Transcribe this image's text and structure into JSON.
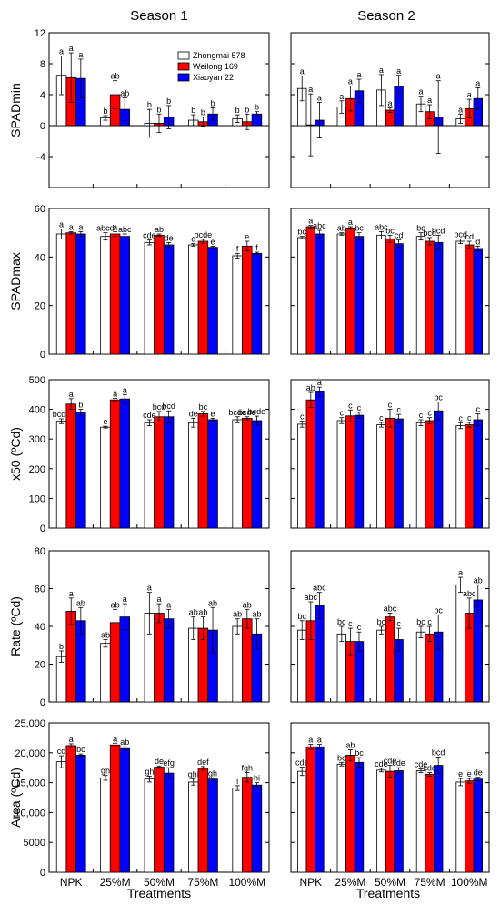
{
  "seasons": [
    "Season 1",
    "Season 2"
  ],
  "xlabel": "Treatments",
  "categories": [
    "NPK",
    "25%M",
    "50%M",
    "75%M",
    "100%M"
  ],
  "colors": {
    "Zhongmai 578": "#ffffff",
    "Weilong 169": "#ff0000",
    "Xiaoyan 22": "#0000ff"
  },
  "legend": [
    "Zhongmai 578",
    "Weilong 169",
    "Xiaoyan 22"
  ],
  "chart_data": [
    {
      "type": "bar",
      "panel": "SPADmin",
      "ylabel": "SPADmin",
      "ylim": [
        -8,
        12
      ],
      "yticks": [
        -4,
        0,
        4,
        8,
        12
      ],
      "ytick_labels": [
        "-4",
        "0",
        "4",
        "8",
        "12"
      ],
      "legend_shown": true,
      "seasons": [
        {
          "series": [
            {
              "name": "Zhongmai 578",
              "values": [
                6.5,
                1.0,
                0.3,
                0.7,
                0.9
              ],
              "errors": [
                2.5,
                0.3,
                1.8,
                0.7,
                0.5
              ],
              "labels": [
                "a",
                "b",
                "b",
                "b",
                "b"
              ]
            },
            {
              "name": "Weilong 169",
              "values": [
                6.2,
                4.0,
                0.3,
                0.5,
                0.5
              ],
              "errors": [
                3.2,
                1.8,
                1.2,
                0.6,
                1.0
              ],
              "labels": [
                "a",
                "ab",
                "b",
                "b",
                "b"
              ]
            },
            {
              "name": "Xiaoyan 22",
              "values": [
                6.1,
                2.1,
                1.1,
                1.5,
                1.5
              ],
              "errors": [
                2.5,
                1.5,
                1.5,
                0.8,
                0.3
              ],
              "labels": [
                "a",
                "ab",
                "b",
                "b",
                "b"
              ]
            }
          ]
        },
        {
          "series": [
            {
              "name": "Zhongmai 578",
              "values": [
                4.8,
                2.4,
                4.6,
                2.8,
                0.9
              ],
              "errors": [
                1.6,
                0.8,
                2.0,
                1.0,
                0.6
              ],
              "labels": [
                "a",
                "a",
                "a",
                "a",
                "a"
              ]
            },
            {
              "name": "Weilong 169",
              "values": [
                0.1,
                3.5,
                2.0,
                1.8,
                2.2
              ],
              "errors": [
                4.0,
                1.6,
                0.3,
                0.9,
                1.2
              ],
              "labels": [
                "a",
                "a",
                "a",
                "a",
                "a"
              ]
            },
            {
              "name": "Xiaoyan 22",
              "values": [
                0.7,
                4.5,
                5.1,
                1.1,
                3.5
              ],
              "errors": [
                2.3,
                1.5,
                1.4,
                4.7,
                1.4
              ],
              "labels": [
                "a",
                "a",
                "a",
                "a",
                "a"
              ]
            }
          ]
        }
      ]
    },
    {
      "type": "bar",
      "panel": "SPADmax",
      "ylabel": "SPADmax",
      "ylim": [
        0,
        60
      ],
      "yticks": [
        0,
        20,
        40,
        60
      ],
      "ytick_labels": [
        "0",
        "20",
        "40",
        "60"
      ],
      "legend_shown": false,
      "seasons": [
        {
          "series": [
            {
              "name": "Zhongmai 578",
              "values": [
                49.5,
                48.5,
                46.0,
                45.0,
                40.5
              ],
              "errors": [
                2.0,
                1.5,
                1.0,
                0.5,
                1.0
              ],
              "labels": [
                "a",
                "abcd",
                "cde",
                "e",
                "f"
              ]
            },
            {
              "name": "Weilong 169",
              "values": [
                50.0,
                49.5,
                49.0,
                46.5,
                44.5
              ],
              "errors": [
                0.5,
                1.0,
                0.5,
                0.8,
                2.0
              ],
              "labels": [
                "a",
                "a",
                "ab",
                "bcde",
                "e"
              ]
            },
            {
              "name": "Xiaoyan 22",
              "values": [
                49.5,
                48.5,
                45.0,
                44.0,
                41.5
              ],
              "errors": [
                1.0,
                1.0,
                1.0,
                0.5,
                0.5
              ],
              "labels": [
                "a",
                "abc",
                "de",
                "e",
                "f"
              ]
            }
          ]
        },
        {
          "series": [
            {
              "name": "Zhongmai 578",
              "values": [
                48.0,
                49.5,
                49.0,
                48.5,
                46.5
              ],
              "errors": [
                0.5,
                0.5,
                1.5,
                1.5,
                1.0
              ],
              "labels": [
                "bc",
                "ab",
                "abc",
                "bc",
                "bcd"
              ]
            },
            {
              "name": "Weilong 169",
              "values": [
                52.5,
                52.0,
                47.5,
                46.5,
                45.0
              ],
              "errors": [
                0.5,
                0.5,
                1.5,
                1.5,
                1.5
              ],
              "labels": [
                "a",
                "a",
                "bc",
                "bcd",
                "cd"
              ]
            },
            {
              "name": "Xiaoyan 22",
              "values": [
                49.5,
                48.5,
                45.5,
                46.0,
                43.5
              ],
              "errors": [
                1.5,
                1.5,
                1.5,
                3.0,
                1.0
              ],
              "labels": [
                "abc",
                "bc",
                "cd",
                "bcd",
                "d"
              ]
            }
          ]
        }
      ]
    },
    {
      "type": "bar",
      "panel": "x50",
      "ylabel": "x50 (ºCd)",
      "ylim": [
        0,
        500
      ],
      "yticks": [
        0,
        100,
        200,
        300,
        400,
        500
      ],
      "ytick_labels": [
        "0",
        "100",
        "200",
        "300",
        "400",
        "500"
      ],
      "legend_shown": false,
      "seasons": [
        {
          "series": [
            {
              "name": "Zhongmai 578",
              "values": [
                360,
                340,
                355,
                355,
                365
              ],
              "errors": [
                8,
                3,
                10,
                15,
                10
              ],
              "labels": [
                "bcde",
                "e",
                "cde",
                "de",
                "bcde"
              ]
            },
            {
              "name": "Weilong 169",
              "values": [
                418,
                432,
                375,
                385,
                370
              ],
              "errors": [
                18,
                5,
                18,
                8,
                5
              ],
              "labels": [
                "a",
                "a",
                "bcd",
                "bc",
                "bcde"
              ]
            },
            {
              "name": "Xiaoyan 22",
              "values": [
                390,
                435,
                375,
                365,
                362
              ],
              "errors": [
                10,
                15,
                20,
                5,
                15
              ],
              "labels": [
                "b",
                "a",
                "bcd",
                "e",
                "bcde"
              ]
            }
          ]
        },
        {
          "series": [
            {
              "name": "Zhongmai 578",
              "values": [
                350,
                362,
                348,
                355,
                345
              ],
              "errors": [
                10,
                10,
                8,
                10,
                10
              ],
              "labels": [
                "c",
                "c",
                "c",
                "c",
                "c"
              ]
            },
            {
              "name": "Weilong 169",
              "values": [
                432,
                378,
                370,
                362,
                348
              ],
              "errors": [
                25,
                20,
                30,
                10,
                8
              ],
              "labels": [
                "ab",
                "c",
                "c",
                "c",
                "c"
              ]
            },
            {
              "name": "Xiaoyan 22",
              "values": [
                460,
                380,
                368,
                395,
                365
              ],
              "errors": [
                15,
                10,
                15,
                30,
                20
              ],
              "labels": [
                "a",
                "c",
                "c",
                "bc",
                "c"
              ]
            }
          ]
        }
      ]
    },
    {
      "type": "bar",
      "panel": "Rate",
      "ylabel": "Rate (ºCd)",
      "ylim": [
        0,
        80
      ],
      "yticks": [
        0,
        20,
        40,
        60,
        80
      ],
      "ytick_labels": [
        "0",
        "20",
        "40",
        "60",
        "80"
      ],
      "legend_shown": false,
      "seasons": [
        {
          "series": [
            {
              "name": "Zhongmai 578",
              "values": [
                24,
                31,
                47,
                39,
                40
              ],
              "errors": [
                3,
                2,
                11,
                6,
                4
              ],
              "labels": [
                "b",
                "ab",
                "a",
                "ab",
                "ab"
              ]
            },
            {
              "name": "Weilong 169",
              "values": [
                48,
                42,
                47,
                39,
                44
              ],
              "errors": [
                7,
                7,
                5,
                6,
                5
              ],
              "labels": [
                "a",
                "ab",
                "a",
                "ab",
                "ab"
              ]
            },
            {
              "name": "Xiaoyan 22",
              "values": [
                43,
                45,
                44,
                38,
                36
              ],
              "errors": [
                7,
                7,
                5,
                12,
                8
              ],
              "labels": [
                "ab",
                "a",
                "a",
                "ab",
                "ab"
              ]
            }
          ]
        },
        {
          "series": [
            {
              "name": "Zhongmai 578",
              "values": [
                38,
                36,
                38,
                37,
                62
              ],
              "errors": [
                5,
                4,
                2,
                3,
                4
              ],
              "labels": [
                "bc",
                "bc",
                "bc",
                "bc",
                "a"
              ]
            },
            {
              "name": "Weilong 169",
              "values": [
                43,
                32,
                45,
                36,
                47
              ],
              "errors": [
                10,
                7,
                2,
                4,
                8
              ],
              "labels": [
                "abc",
                "c",
                "abc",
                "c",
                "abc"
              ]
            },
            {
              "name": "Xiaoyan 22",
              "values": [
                51,
                32,
                33,
                37,
                54
              ],
              "errors": [
                7,
                5,
                6,
                9,
                8
              ],
              "labels": [
                "abc",
                "c",
                "c",
                "bc",
                "ab"
              ]
            }
          ]
        }
      ]
    },
    {
      "type": "bar",
      "panel": "Area",
      "ylabel": "Area (ºCd)",
      "ylim": [
        0,
        25000
      ],
      "yticks": [
        0,
        5000,
        10000,
        15000,
        20000,
        25000
      ],
      "ytick_labels": [
        "0",
        "5000",
        "10,000",
        "15,000",
        "20,000",
        "25,000"
      ],
      "legend_shown": false,
      "seasons": [
        {
          "series": [
            {
              "name": "Zhongmai 578",
              "values": [
                18500,
                15800,
                15600,
                15100,
                14100
              ],
              "errors": [
                1000,
                400,
                500,
                500,
                400
              ],
              "labels": [
                "cd",
                "gh",
                "gh",
                "ghi",
                "i"
              ]
            },
            {
              "name": "Weilong 169",
              "values": [
                21200,
                21300,
                17600,
                17400,
                15900
              ],
              "errors": [
                300,
                300,
                200,
                300,
                800
              ],
              "labels": [
                "a",
                "a",
                "de",
                "def",
                "fgh"
              ]
            },
            {
              "name": "Xiaoyan 22",
              "values": [
                19600,
                20700,
                16600,
                15600,
                14600
              ],
              "errors": [
                200,
                300,
                900,
                200,
                400
              ],
              "labels": [
                "bc",
                "ab",
                "efg",
                "gh",
                "hi"
              ]
            }
          ]
        },
        {
          "series": [
            {
              "name": "Zhongmai 578",
              "values": [
                16900,
                18100,
                17100,
                17000,
                15100
              ],
              "errors": [
                700,
                300,
                300,
                300,
                600
              ],
              "labels": [
                "cde",
                "bc",
                "cde",
                "cde",
                "e"
              ]
            },
            {
              "name": "Weilong 169",
              "values": [
                21000,
                19600,
                16900,
                16400,
                15300
              ],
              "errors": [
                400,
                900,
                1000,
                300,
                400
              ],
              "labels": [
                "a",
                "ab",
                "cde",
                "cde",
                "e"
              ]
            },
            {
              "name": "Xiaoyan 22",
              "values": [
                21000,
                18400,
                17000,
                17900,
                15600
              ],
              "errors": [
                400,
                800,
                500,
                1400,
                300
              ],
              "labels": [
                "a",
                "bc",
                "cde",
                "bcd",
                "de"
              ]
            }
          ]
        }
      ]
    }
  ]
}
